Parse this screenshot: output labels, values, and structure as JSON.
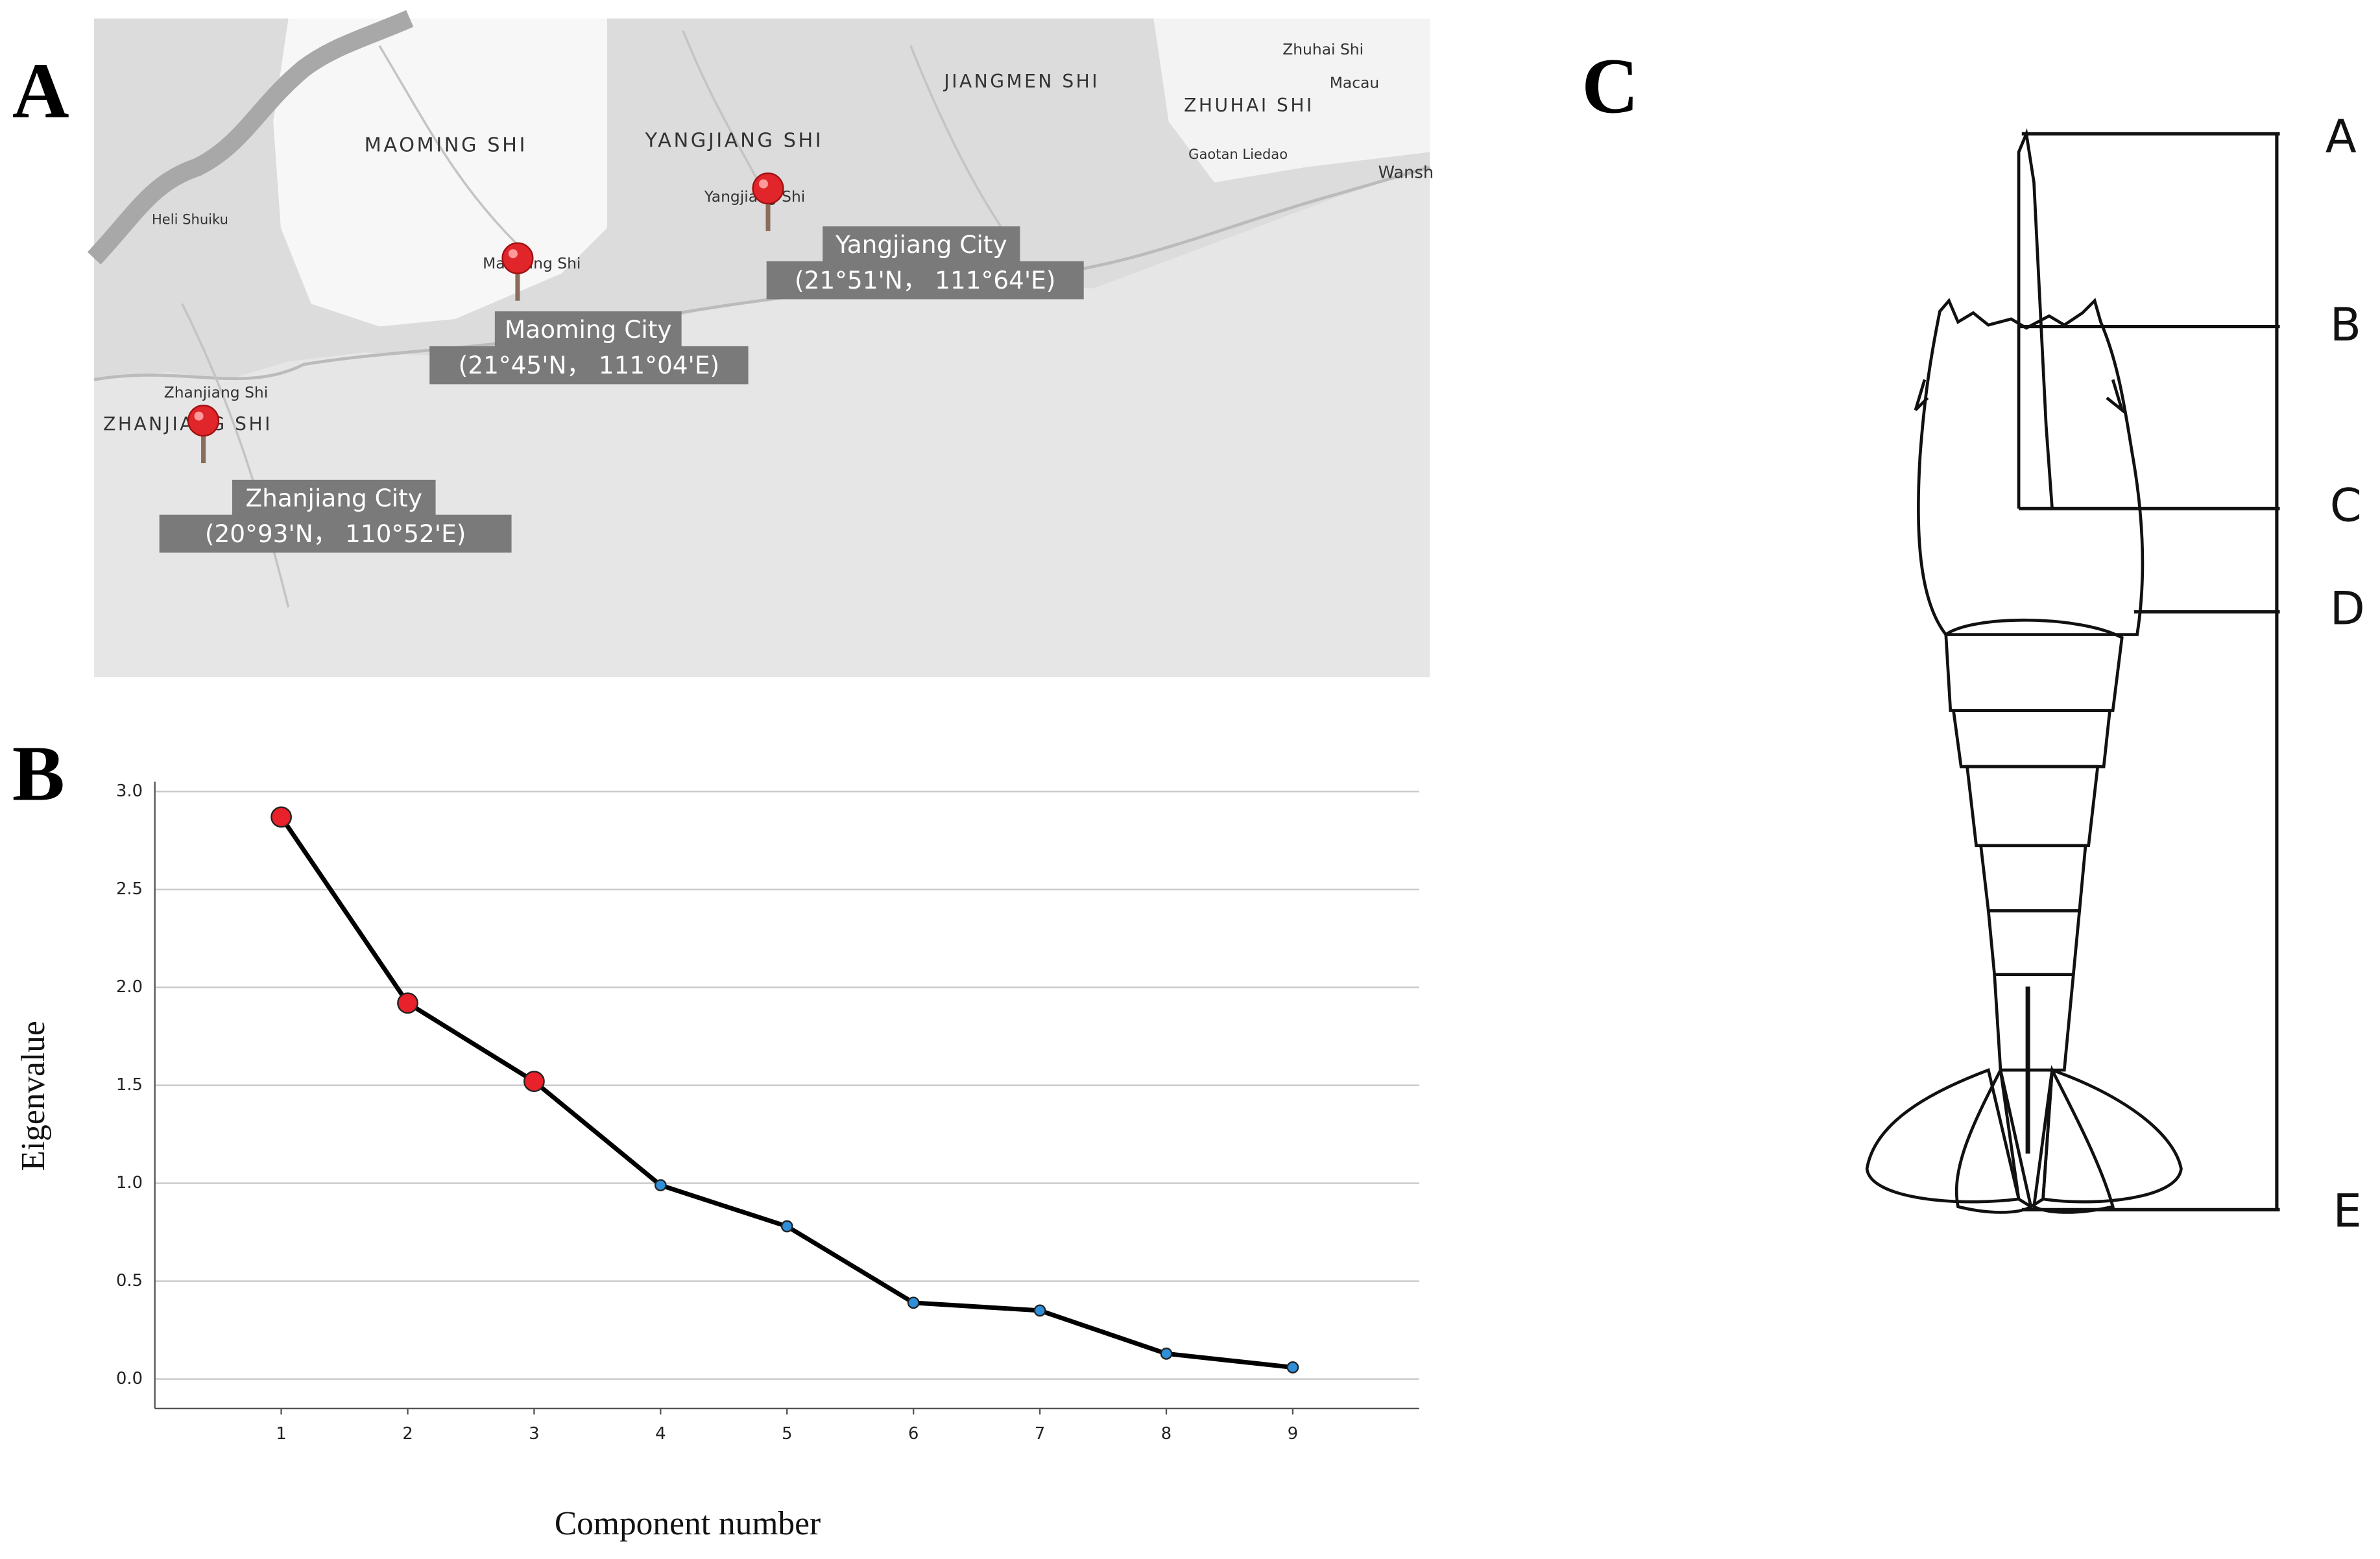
{
  "panels": [
    "A",
    "B",
    "C"
  ],
  "map": {
    "places": [
      "MAOMING SHI",
      "YANGJIANG SHI",
      "JIANGMEN SHI",
      "ZHUHAI SHI",
      "ZHANJIANG SHI",
      "Zhanjiang Shi",
      "Maoming Shi",
      "Yangjiang Shi",
      "Zhuhai Shi",
      "Macau",
      "Gaotan Liedao",
      "Wansh",
      "Heli Shuiku"
    ],
    "cities": [
      {
        "name": "Zhanjiang City",
        "coords": "(20°93'N， 110°52'E)"
      },
      {
        "name": "Maoming City",
        "coords": "(21°45'N， 111°04'E)"
      },
      {
        "name": "Yangjiang City",
        "coords": "(21°51'N， 111°64'E)"
      }
    ]
  },
  "chart_data": {
    "type": "line",
    "x_label": "Component number",
    "y_label": "Eigenvalue",
    "x": [
      1,
      2,
      3,
      4,
      5,
      6,
      7,
      8,
      9
    ],
    "series": [
      {
        "color": "#000000",
        "values": [
          2.87,
          1.92,
          1.52,
          0.99,
          0.78,
          0.39,
          0.35,
          0.13,
          0.06
        ],
        "marker_colors": [
          "#e8212b",
          "#e8212b",
          "#e8212b",
          "#2f8fd8",
          "#2f8fd8",
          "#2f8fd8",
          "#2f8fd8",
          "#2f8fd8",
          "#2f8fd8"
        ]
      }
    ],
    "xlim": [
      0,
      10
    ],
    "xticks": [
      1,
      2,
      3,
      4,
      5,
      6,
      7,
      8,
      9
    ],
    "ylim": [
      -0.15,
      3.05
    ],
    "yticks": [
      {
        "value": 0,
        "label": "0.0"
      },
      {
        "value": 0.5,
        "label": "0.5"
      },
      {
        "value": 1,
        "label": "1.0"
      },
      {
        "value": 1.5,
        "label": "1.5"
      },
      {
        "value": 2,
        "label": "2.0"
      },
      {
        "value": 2.5,
        "label": "2.5"
      },
      {
        "value": 3,
        "label": "3.0"
      }
    ],
    "grid": true
  },
  "diagram": {
    "labels": [
      "A",
      "B",
      "C",
      "D",
      "E"
    ]
  }
}
